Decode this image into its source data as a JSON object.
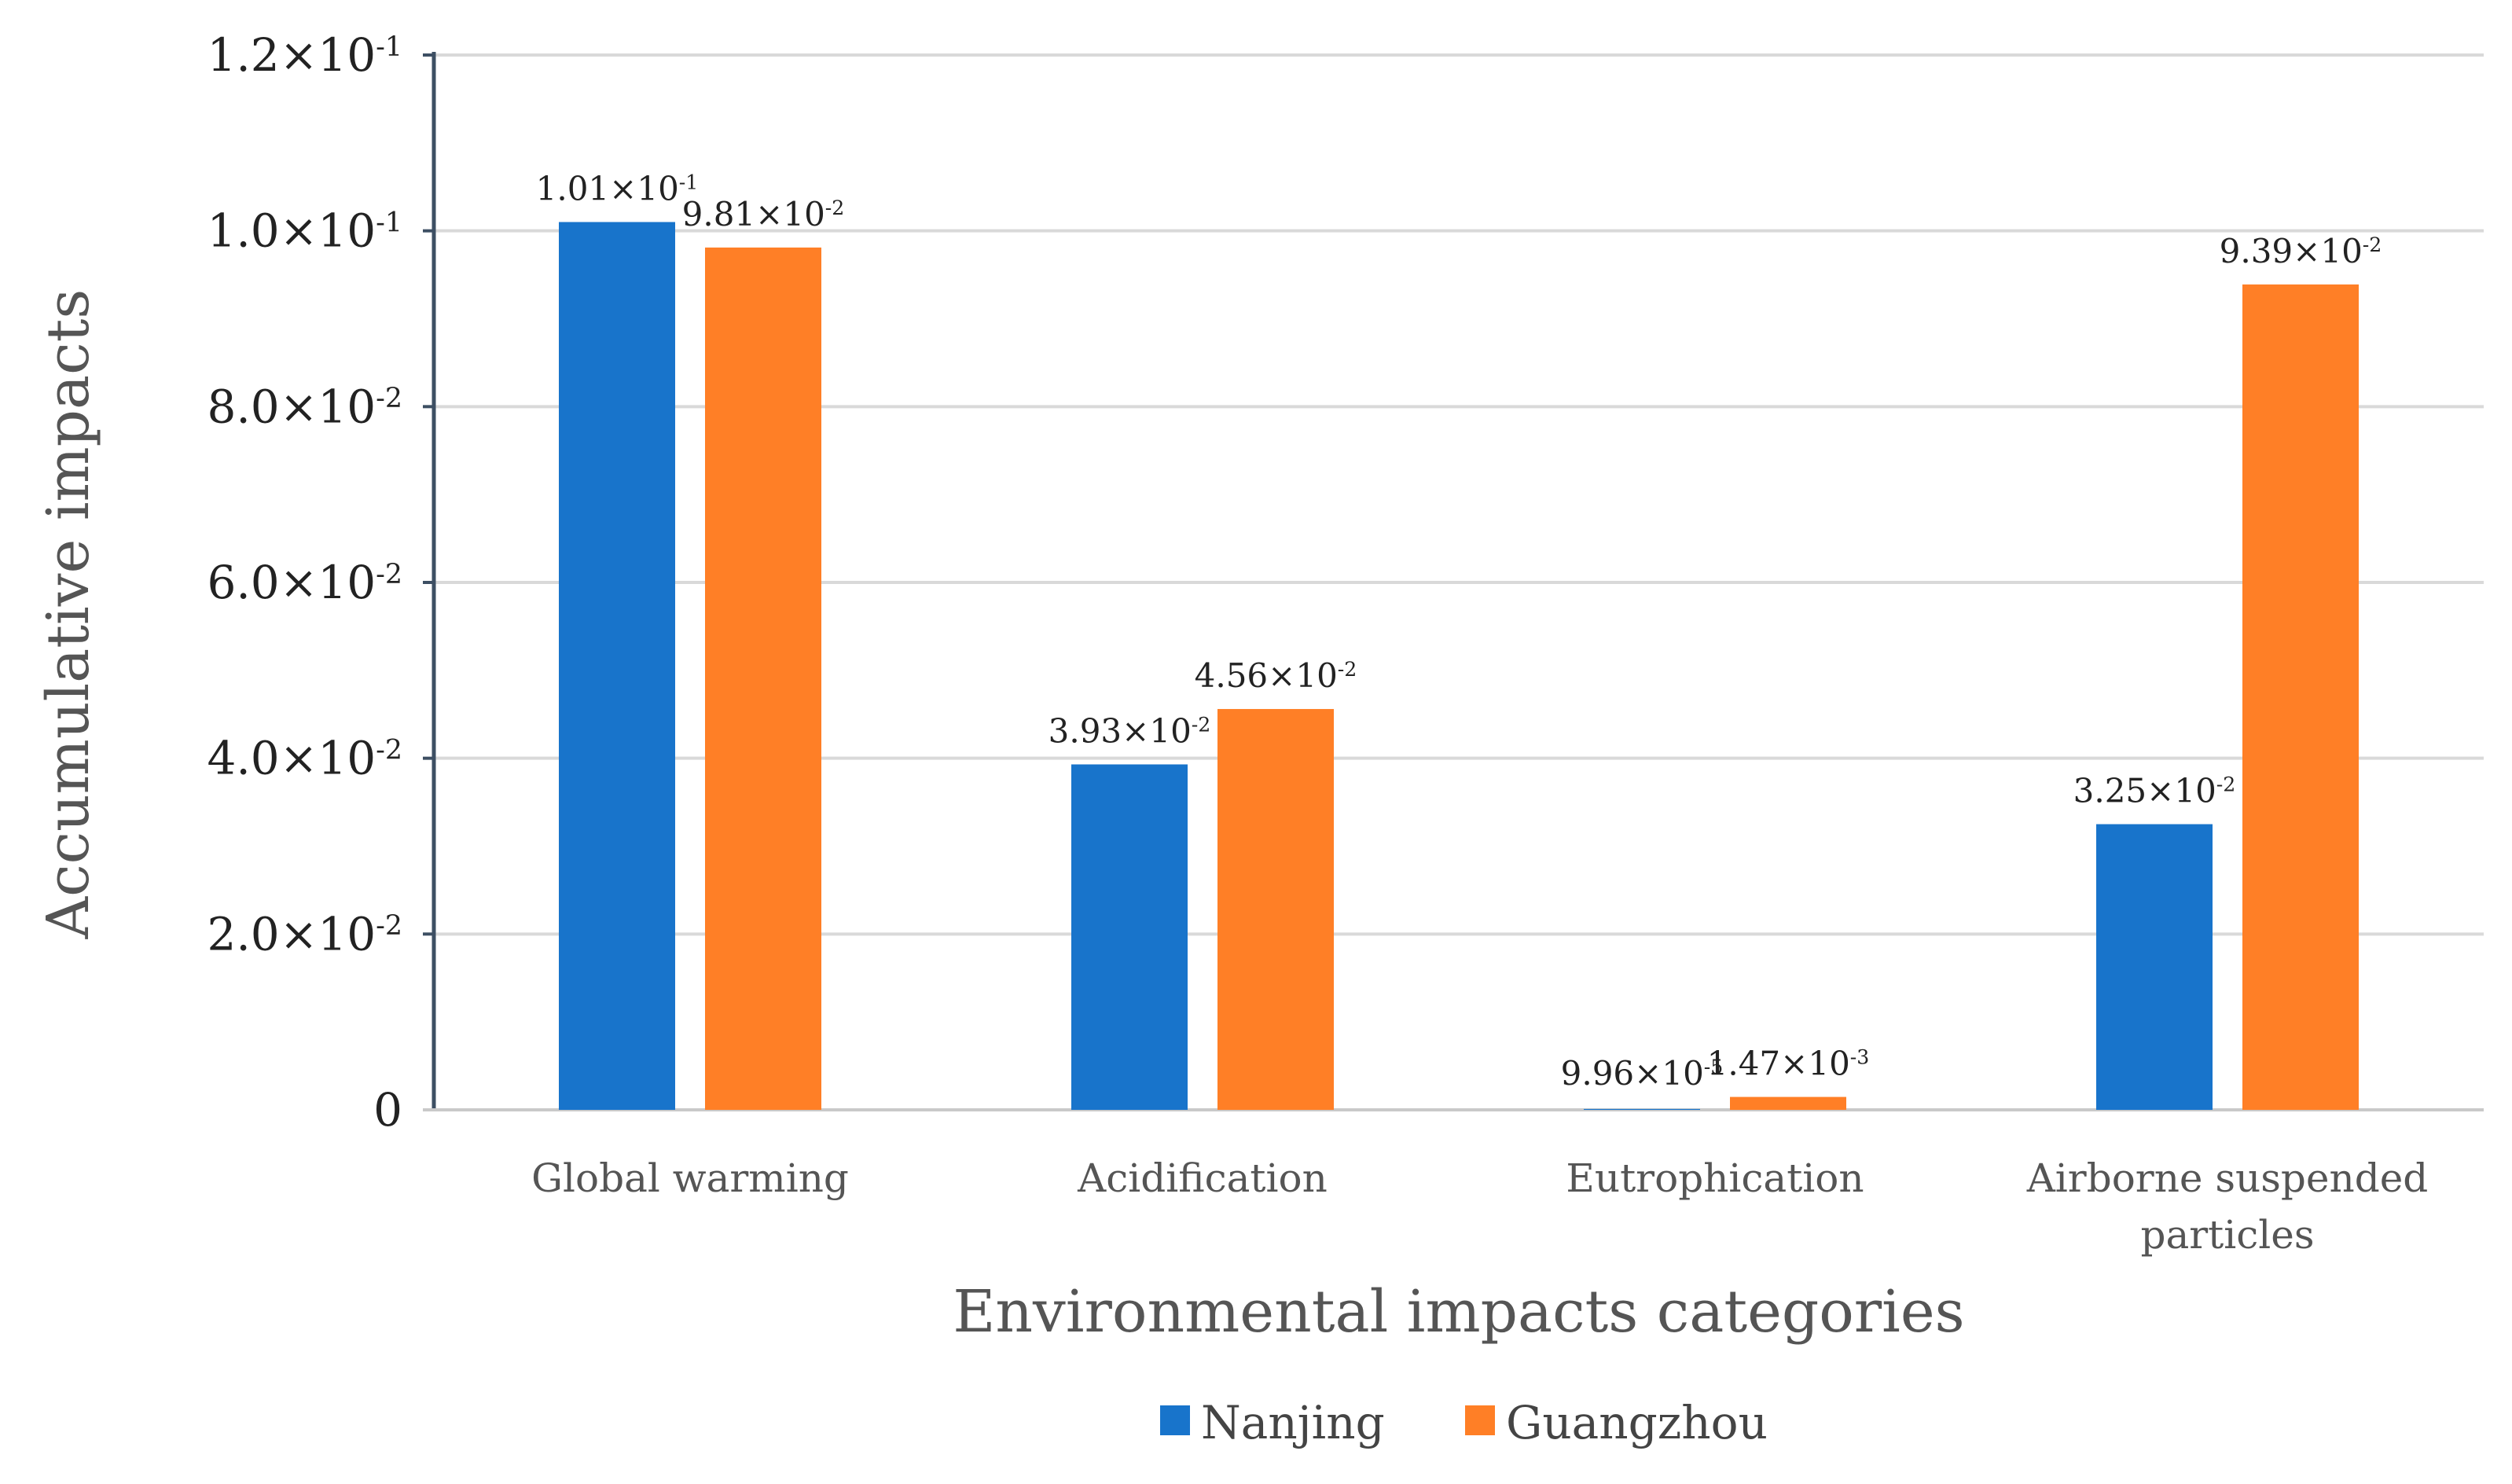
{
  "chart_data": {
    "type": "bar",
    "categories": [
      [
        "Global warming"
      ],
      [
        "Acidification"
      ],
      [
        "Eutrophication"
      ],
      [
        "Airborne suspended",
        "particles"
      ]
    ],
    "series": [
      {
        "name": "Nanjing",
        "color": "#1874CB",
        "values": [
          0.101,
          0.0393,
          9.96e-05,
          0.0325
        ],
        "labels": [
          {
            "mantissa": "1.01",
            "exp": "-1"
          },
          {
            "mantissa": "3.93",
            "exp": "-2"
          },
          {
            "mantissa": "9.96",
            "exp": "-5"
          },
          {
            "mantissa": "3.25",
            "exp": "-2"
          }
        ]
      },
      {
        "name": "Guangzhou",
        "color": "#FF7F26",
        "values": [
          0.0981,
          0.0456,
          0.00147,
          0.0939
        ],
        "labels": [
          {
            "mantissa": "9.81",
            "exp": "-2"
          },
          {
            "mantissa": "4.56",
            "exp": "-2"
          },
          {
            "mantissa": "1.47",
            "exp": "-3"
          },
          {
            "mantissa": "9.39",
            "exp": "-2"
          }
        ]
      }
    ],
    "xlabel": "Environmental impacts categories",
    "ylabel": "Accumulative impacts",
    "ylim": [
      0,
      0.12
    ],
    "yticks": [
      {
        "value": 0,
        "mantissa": "0",
        "exp": ""
      },
      {
        "value": 0.02,
        "mantissa": "2.0",
        "exp": "-2"
      },
      {
        "value": 0.04,
        "mantissa": "4.0",
        "exp": "-2"
      },
      {
        "value": 0.06,
        "mantissa": "6.0",
        "exp": "-2"
      },
      {
        "value": 0.08,
        "mantissa": "8.0",
        "exp": "-2"
      },
      {
        "value": 0.1,
        "mantissa": "1.0",
        "exp": "-1"
      },
      {
        "value": 0.12,
        "mantissa": "1.2",
        "exp": "-1"
      }
    ],
    "grid": true,
    "legend_position": "bottom-center"
  }
}
